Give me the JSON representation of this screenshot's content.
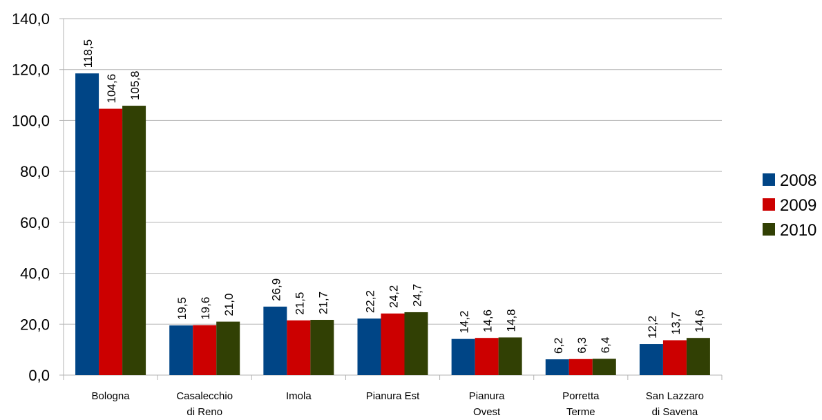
{
  "chart_data": {
    "type": "bar",
    "title": "",
    "xlabel": "",
    "ylabel": "",
    "categories": [
      [
        "Bologna"
      ],
      [
        "Casalecchio",
        "di Reno"
      ],
      [
        "Imola"
      ],
      [
        "Pianura Est"
      ],
      [
        "Pianura",
        "Ovest"
      ],
      [
        "Porretta",
        "Terme"
      ],
      [
        "San Lazzaro",
        "di Savena"
      ]
    ],
    "series": [
      {
        "name": "2008",
        "color": "#004586",
        "values": [
          118.5,
          19.5,
          26.9,
          22.2,
          14.2,
          6.2,
          12.2
        ]
      },
      {
        "name": "2009",
        "color": "#cc0000",
        "values": [
          104.6,
          19.6,
          21.5,
          24.2,
          14.6,
          6.3,
          13.7
        ]
      },
      {
        "name": "2010",
        "color": "#314004",
        "values": [
          105.8,
          21.0,
          21.7,
          24.7,
          14.8,
          6.4,
          14.6
        ]
      }
    ],
    "ylim": [
      0,
      140
    ],
    "yticks": [
      0,
      20,
      40,
      60,
      80,
      100,
      120,
      140
    ],
    "decimal_separator": ",",
    "tick_decimals": 1,
    "grid": true,
    "legend_position": "right",
    "data_labels": true
  }
}
